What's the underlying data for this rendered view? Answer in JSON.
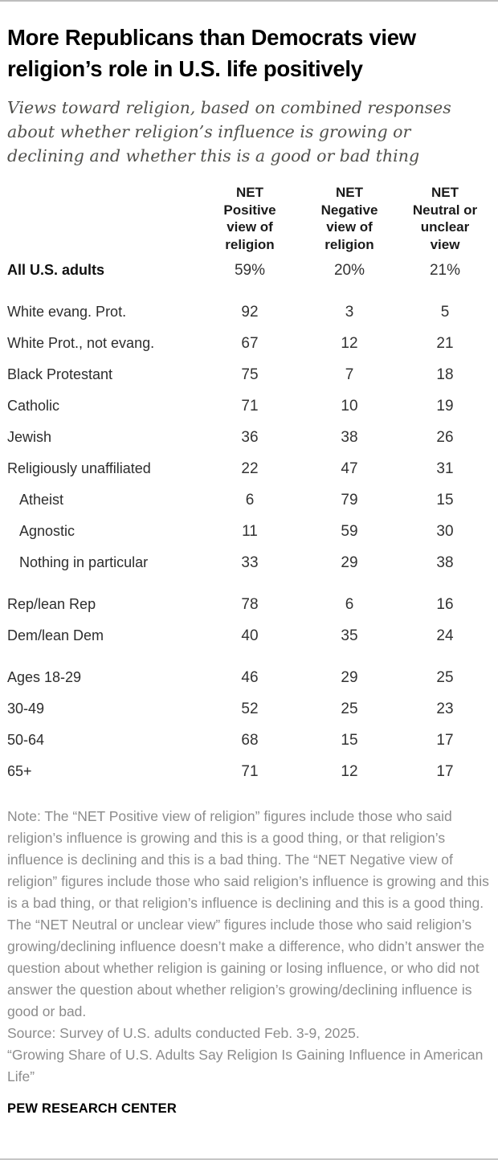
{
  "colors": {
    "title_text": "#000000",
    "subtitle_text": "#50504c",
    "body_text": "#2d2d2d",
    "value_text": "#333333",
    "note_text": "#8c8c8c",
    "rule": "#bdbdbd"
  },
  "chart_data": {
    "type": "table",
    "title": "More Republicans than Democrats view religion’s role in U.S. life positively",
    "subtitle": "Views toward religion, based on combined responses about whether religion’s influence is growing or declining and whether this is a good or bad thing",
    "columns": [
      "NET\nPositive\nview of\nreligion",
      "NET\nNegative\nview of\nreligion",
      "NET\nNeutral or\nunclear\nview"
    ],
    "rows": [
      {
        "label": "All U.S. adults",
        "values": [
          "59%",
          "20%",
          "21%"
        ]
      },
      {
        "label": "White evang. Prot.",
        "values": [
          "92",
          "3",
          "5"
        ]
      },
      {
        "label": "White Prot., not evang.",
        "values": [
          "67",
          "12",
          "21"
        ]
      },
      {
        "label": "Black Protestant",
        "values": [
          "75",
          "7",
          "18"
        ]
      },
      {
        "label": "Catholic",
        "values": [
          "71",
          "10",
          "19"
        ]
      },
      {
        "label": "Jewish",
        "values": [
          "36",
          "38",
          "26"
        ]
      },
      {
        "label": "Religiously unaffiliated",
        "values": [
          "22",
          "47",
          "31"
        ]
      },
      {
        "label": "Atheist",
        "values": [
          "6",
          "79",
          "15"
        ]
      },
      {
        "label": "Agnostic",
        "values": [
          "11",
          "59",
          "30"
        ]
      },
      {
        "label": "Nothing in particular",
        "values": [
          "33",
          "29",
          "38"
        ]
      },
      {
        "label": "Rep/lean Rep",
        "values": [
          "78",
          "6",
          "16"
        ]
      },
      {
        "label": "Dem/lean Dem",
        "values": [
          "40",
          "35",
          "24"
        ]
      },
      {
        "label": "Ages 18-29",
        "values": [
          "46",
          "29",
          "25"
        ]
      },
      {
        "label": "30-49",
        "values": [
          "52",
          "25",
          "23"
        ]
      },
      {
        "label": "50-64",
        "values": [
          "68",
          "15",
          "17"
        ]
      },
      {
        "label": "65+",
        "values": [
          "71",
          "12",
          "17"
        ]
      }
    ],
    "note": "Note: The “NET Positive view of religion” figures include those who said religion’s influence is growing and this is a good thing, or that religion’s influence is declining and this is a bad thing. The “NET Negative view of religion” figures include those who said religion’s influence is growing and this is a bad thing, or that religion’s influence is declining and this is a good thing. The “NET Neutral or unclear view” figures include those who said religion’s growing/declining influence doesn’t make a difference, who didn’t answer the question about whether religion is gaining or losing influence, or who did not answer the question about whether religion’s growing/declining influence is good or bad.",
    "source": "Source: Survey of U.S. adults conducted Feb. 3-9, 2025.",
    "report_title": "“Growing Share of U.S. Adults Say Religion Is Gaining Influence in American Life”",
    "brand": "PEW RESEARCH CENTER"
  }
}
